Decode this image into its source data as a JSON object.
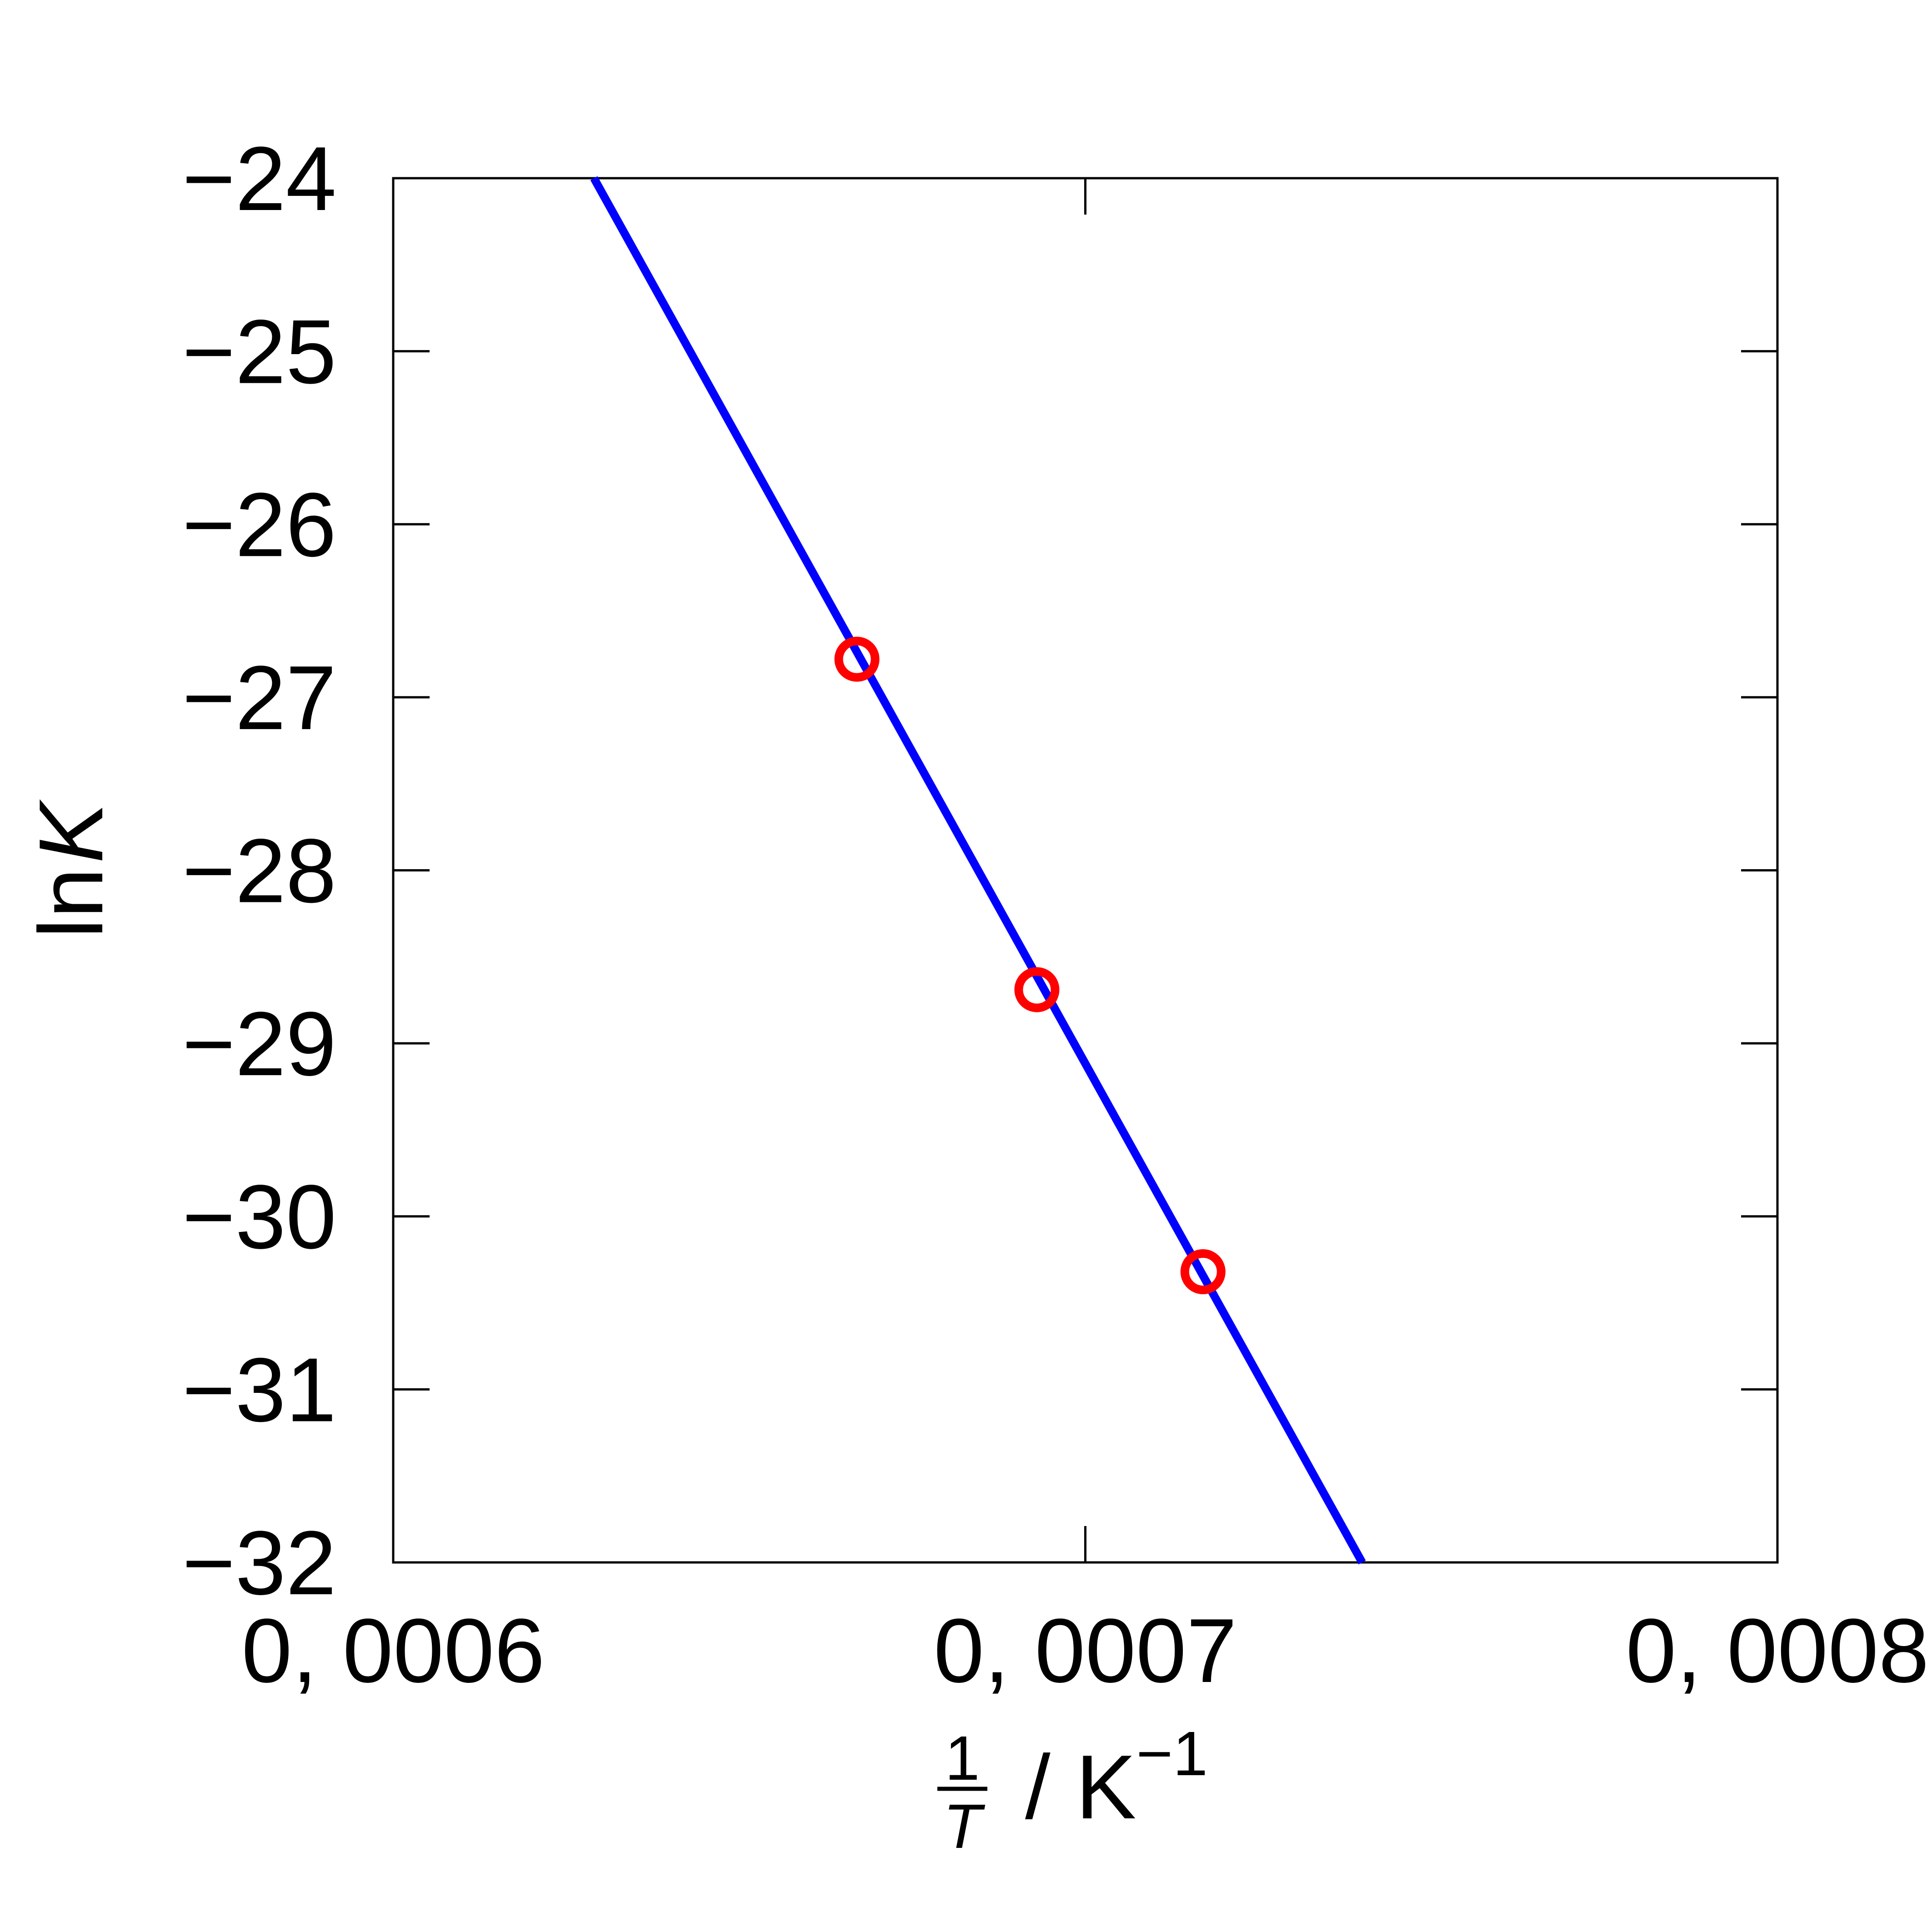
{
  "chart_data": {
    "type": "scatter",
    "xlabel": {
      "fraction_numerator": "1",
      "fraction_denominator": "T",
      "unit_prefix": "/ K",
      "unit_exponent": "−1"
    },
    "ylabel": {
      "prefix": "ln",
      "variable": "K"
    },
    "xlim": [
      0.0006,
      0.0008
    ],
    "ylim": [
      -32,
      -24
    ],
    "x_ticks": [
      0.0006,
      0.0007,
      0.0008
    ],
    "x_tick_labels": [
      "0, 0006",
      "0, 0007",
      "0, 0008"
    ],
    "y_ticks": [
      -24,
      -25,
      -26,
      -27,
      -28,
      -29,
      -30,
      -31,
      -32
    ],
    "y_tick_labels": [
      "−24",
      "−25",
      "−26",
      "−27",
      "−28",
      "−29",
      "−30",
      "−31",
      "−32"
    ],
    "grid": false,
    "series": [
      {
        "kind": "points",
        "marker": "open-circle",
        "color": "#ff0000",
        "x": [
          0.000667,
          0.000693,
          0.000717
        ],
        "y": [
          -26.78,
          -28.69,
          -30.32
        ]
      },
      {
        "kind": "fit-line",
        "color": "#0000ff",
        "x": [
          0.000629,
          0.00074
        ],
        "y": [
          -24.0,
          -32.0
        ]
      }
    ]
  }
}
